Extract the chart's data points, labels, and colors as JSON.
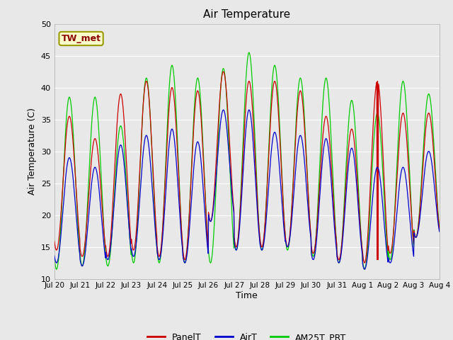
{
  "title": "Air Temperature",
  "xlabel": "Time",
  "ylabel": "Air Temperature (C)",
  "ylim": [
    10,
    50
  ],
  "annotation_text": "TW_met",
  "annotation_color": "#8B0000",
  "annotation_bg": "#FFFFCC",
  "annotation_border": "#999900",
  "legend_labels": [
    "PanelT",
    "AirT",
    "AM25T_PRT"
  ],
  "panel_color": "#CC0000",
  "air_color": "#0000CC",
  "am25_color": "#00CC00",
  "bg_color": "#E8E8E8",
  "grid_color": "#FFFFFF",
  "xtick_labels": [
    "Jul 20",
    "Jul 21",
    "Jul 22",
    "Jul 23",
    "Jul 24",
    "Jul 25",
    "Jul 26",
    "Jul 27",
    "Jul 28",
    "Jul 29",
    "Jul 30",
    "Jul 31",
    "Aug 1",
    "Aug 2",
    "Aug 3",
    "Aug 4"
  ],
  "n_days": 15,
  "am25_peaks": [
    38.5,
    38.5,
    34.0,
    41.5,
    43.5,
    41.5,
    43.0,
    45.5,
    43.5,
    41.5,
    41.5,
    38.0,
    36.0,
    41.0,
    39.0
  ],
  "am25_troughs": [
    11.5,
    12.0,
    12.0,
    12.5,
    12.5,
    12.5,
    12.5,
    14.5,
    14.5,
    14.5,
    13.5,
    12.5,
    11.5,
    13.0,
    16.5
  ],
  "panel_peaks": [
    35.5,
    32.0,
    39.0,
    41.0,
    40.0,
    39.5,
    42.5,
    41.0,
    41.0,
    39.5,
    35.5,
    33.5,
    41.0,
    36.0,
    36.0
  ],
  "panel_troughs": [
    14.5,
    13.5,
    13.5,
    14.5,
    13.5,
    13.0,
    19.0,
    15.0,
    15.0,
    15.0,
    14.0,
    13.0,
    12.5,
    14.0,
    16.5
  ],
  "air_peaks": [
    29.0,
    27.5,
    31.0,
    32.5,
    33.5,
    31.5,
    36.5,
    36.5,
    33.0,
    32.5,
    32.0,
    30.5,
    27.5,
    27.5,
    30.0
  ],
  "air_troughs": [
    12.5,
    12.0,
    13.0,
    13.5,
    13.0,
    12.5,
    19.0,
    14.5,
    14.5,
    15.0,
    13.0,
    12.5,
    11.5,
    12.5,
    16.5
  ],
  "peak_hour": 14,
  "trough_hour": 4,
  "figwidth": 6.4,
  "figheight": 4.8,
  "dpi": 100
}
